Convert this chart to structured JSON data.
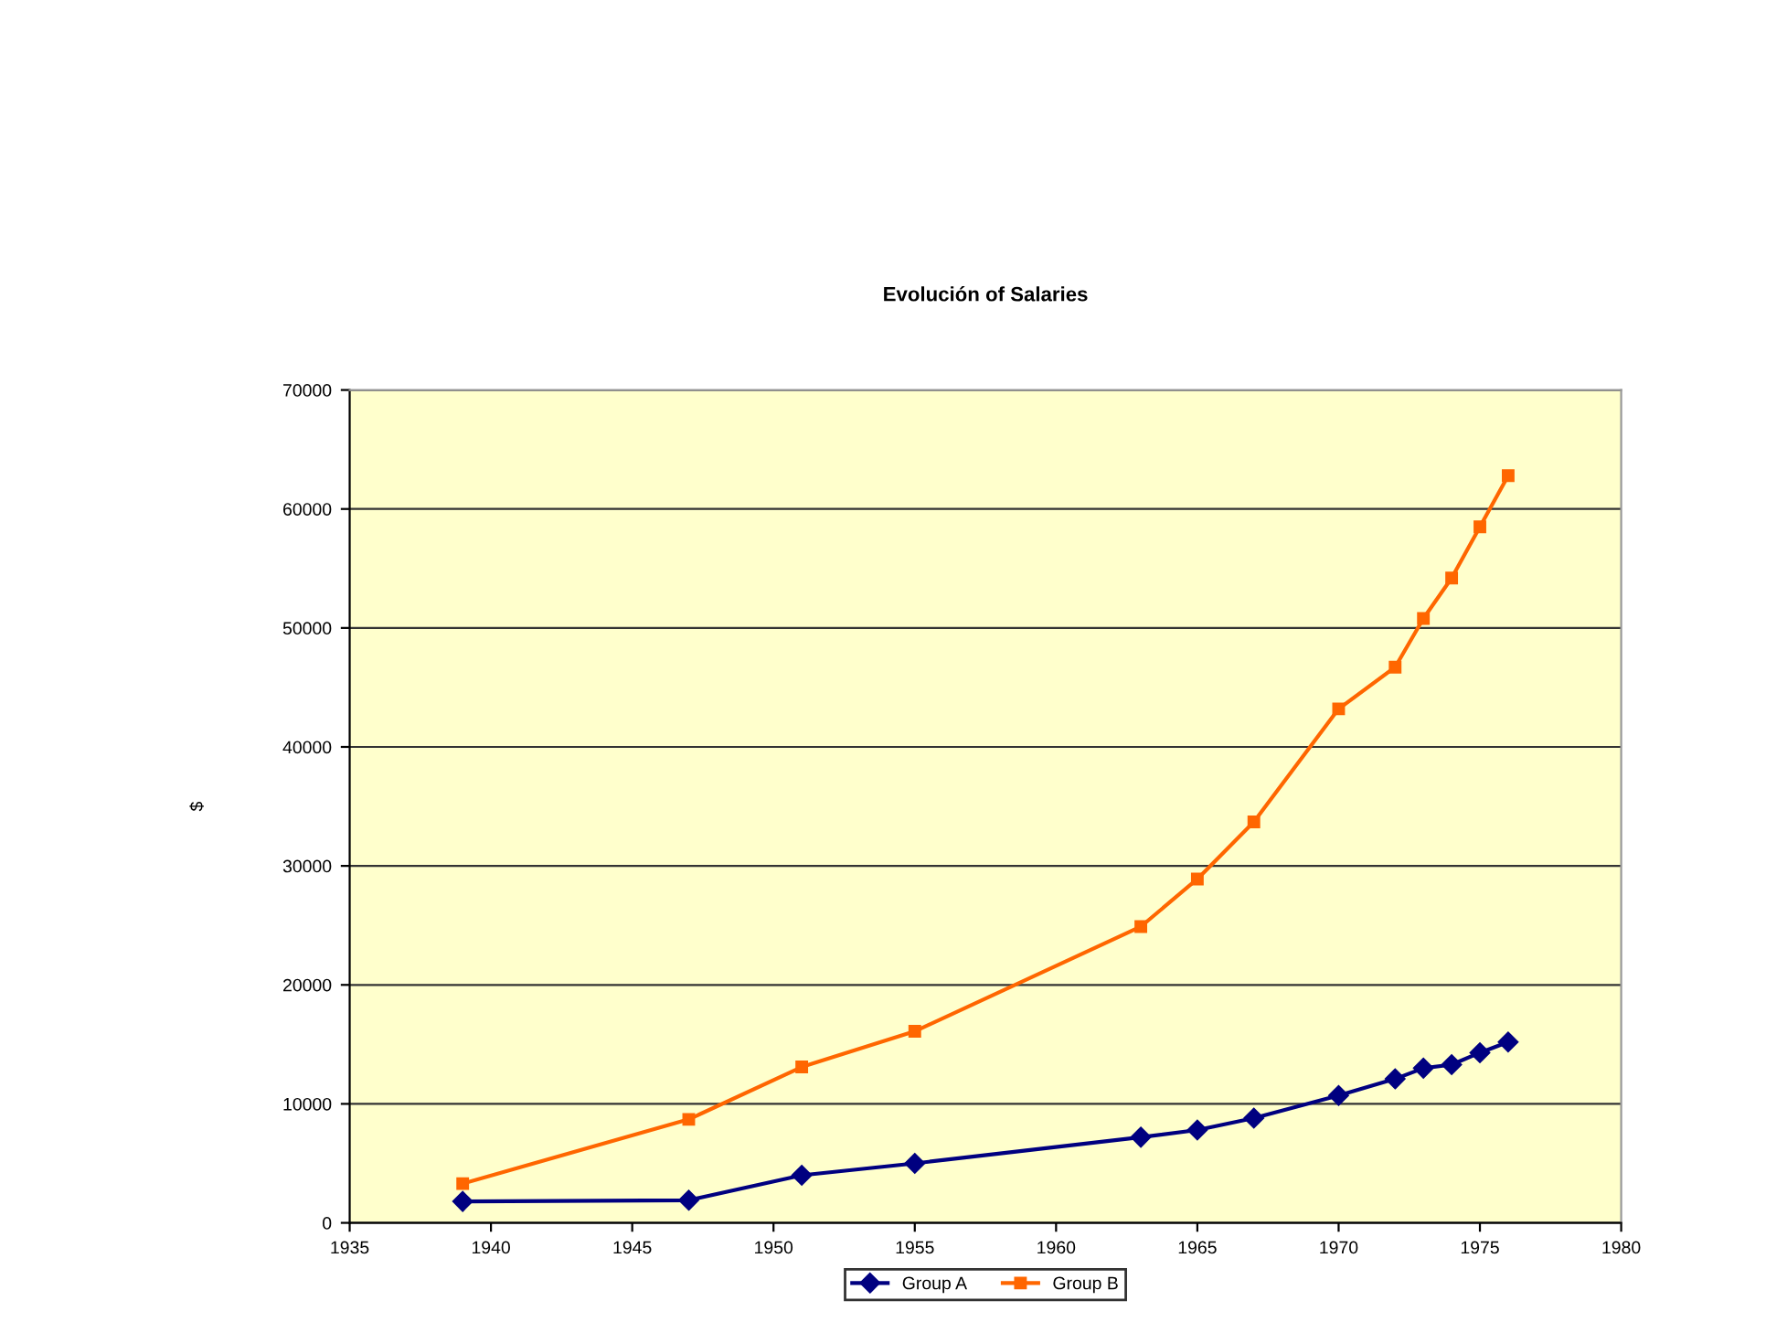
{
  "chart_data": {
    "type": "line",
    "title": "Evolución of Salaries",
    "ylabel": "$",
    "x": [
      1939,
      1947,
      1951,
      1955,
      1963,
      1965,
      1967,
      1970,
      1972,
      1973,
      1974,
      1975,
      1976
    ],
    "series": [
      {
        "name": "Group A",
        "color": "#000080",
        "marker": "diamond",
        "values": [
          1800,
          1900,
          4000,
          5000,
          7200,
          7800,
          8800,
          10700,
          12100,
          13000,
          13300,
          14300,
          15200
        ]
      },
      {
        "name": "Group B",
        "color": "#ff6600",
        "marker": "square",
        "values": [
          3300,
          8700,
          13100,
          16100,
          24900,
          28900,
          33700,
          43200,
          46700,
          50800,
          54200,
          58500,
          62800
        ]
      }
    ],
    "xlim": [
      1935,
      1980
    ],
    "xticks": [
      1935,
      1940,
      1945,
      1950,
      1955,
      1960,
      1965,
      1970,
      1975,
      1980
    ],
    "ylim": [
      0,
      70000
    ],
    "yticks": [
      0,
      10000,
      20000,
      30000,
      40000,
      50000,
      60000,
      70000
    ],
    "grid": "y",
    "legend": "bottom",
    "line_style": "solid"
  }
}
